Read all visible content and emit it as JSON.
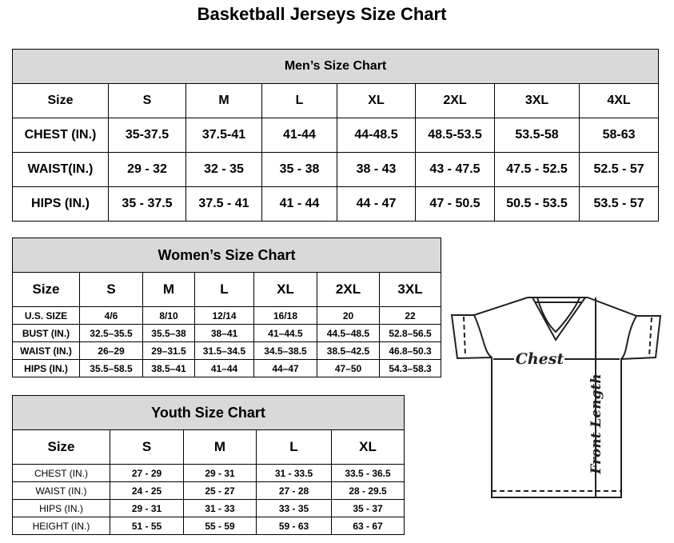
{
  "title": "Basketball Jerseys Size Chart",
  "men": {
    "title": "Men’s Size Chart",
    "header": [
      "Size",
      "S",
      "M",
      "L",
      "XL",
      "2XL",
      "3XL",
      "4XL"
    ],
    "rows": [
      [
        "CHEST (IN.)",
        "35-37.5",
        "37.5-41",
        "41-44",
        "44-48.5",
        "48.5-53.5",
        "53.5-58",
        "58-63"
      ],
      [
        "WAIST(IN.)",
        "29 - 32",
        "32 - 35",
        "35 - 38",
        "38 - 43",
        "43 - 47.5",
        "47.5 - 52.5",
        "52.5 - 57"
      ],
      [
        "HIPS (IN.)",
        "35 - 37.5",
        "37.5 - 41",
        "41 - 44",
        "44 - 47",
        "47 - 50.5",
        "50.5 - 53.5",
        "53.5 - 57"
      ]
    ]
  },
  "women": {
    "title": "Women’s Size Chart",
    "header": [
      "Size",
      "S",
      "M",
      "L",
      "XL",
      "2XL",
      "3XL"
    ],
    "rows": [
      [
        "U.S. SIZE",
        "4/6",
        "8/10",
        "12/14",
        "16/18",
        "20",
        "22"
      ],
      [
        "BUST (IN.)",
        "32.5–35.5",
        "35.5–38",
        "38–41",
        "41–44.5",
        "44.5–48.5",
        "52.8–56.5"
      ],
      [
        "WAIST (IN.)",
        "26–29",
        "29–31.5",
        "31.5–34.5",
        "34.5–38.5",
        "38.5–42.5",
        "46.8–50.3"
      ],
      [
        "HIPS (IN.)",
        "35.5–58.5",
        "38.5–41",
        "41–44",
        "44–47",
        "47–50",
        "54.3–58.3"
      ]
    ]
  },
  "youth": {
    "title": "Youth Size Chart",
    "header": [
      "Size",
      "S",
      "M",
      "L",
      "XL"
    ],
    "rows": [
      [
        "CHEST (IN.)",
        "27 - 29",
        "29 - 31",
        "31 - 33.5",
        "33.5 - 36.5"
      ],
      [
        "WAIST (IN.)",
        "24 - 25",
        "25 - 27",
        "27 - 28",
        "28 - 29.5"
      ],
      [
        "HIPS (IN.)",
        "29 - 31",
        "31 - 33",
        "33 - 35",
        "35 - 37"
      ],
      [
        "HEIGHT (IN.)",
        "51 - 55",
        "55 - 59",
        "59 - 63",
        "63 - 67"
      ]
    ]
  },
  "jersey": {
    "chest_label": "Chest",
    "length_label": "Front Length",
    "icon": "t-shirt-diagram"
  }
}
